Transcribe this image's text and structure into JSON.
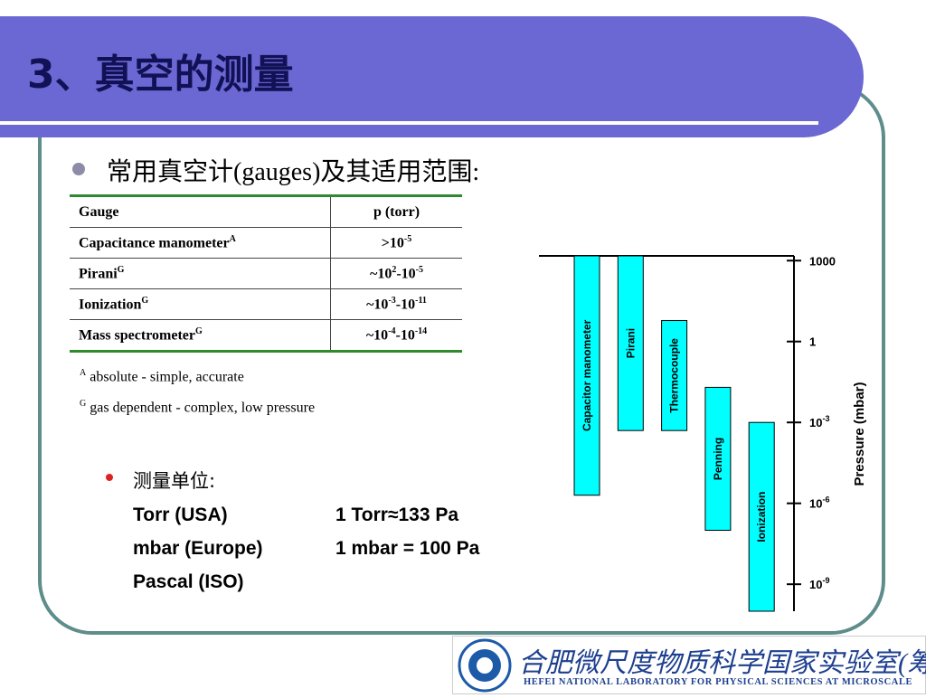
{
  "header": {
    "title": "3、真空的测量"
  },
  "bullet1": "常用真空计(gauges)及其适用范围:",
  "table": {
    "header": [
      "Gauge",
      "p (torr)"
    ],
    "rows": [
      [
        [
          "Capacitance manometer",
          "A"
        ],
        [
          ">10",
          "-5"
        ]
      ],
      [
        [
          "Pirani",
          "G"
        ],
        [
          "~10",
          "2",
          "-10",
          "-5"
        ]
      ],
      [
        [
          "Ionization",
          "G"
        ],
        [
          "~10",
          "-3",
          "-10",
          "-11"
        ]
      ],
      [
        [
          "Mass spectrometer",
          "G"
        ],
        [
          "~10",
          "-4",
          "-10",
          "-14"
        ]
      ]
    ]
  },
  "footnotes": [
    {
      "mark": "A",
      "text": "absolute - simple, accurate"
    },
    {
      "mark": "G",
      "text": "gas dependent - complex, low pressure"
    }
  ],
  "bullet2": {
    "title": "测量单位:",
    "rows": [
      [
        "Torr (USA)",
        "1 Torr≈133 Pa"
      ],
      [
        "mbar (Europe)",
        "1 mbar = 100 Pa"
      ],
      [
        "Pascal (ISO)"
      ]
    ]
  },
  "chart_data": {
    "type": "range_bar",
    "y_label": "Pressure (mbar)",
    "log_scale": true,
    "color": "#00ffff",
    "categories": [
      "Capacitor manometer",
      "Pirani",
      "Thermocouple",
      "Penning",
      "Ionization"
    ],
    "high": [
      1500,
      1500,
      6,
      0.02,
      0.001
    ],
    "low": [
      2e-06,
      0.0005,
      0.0005,
      1e-07,
      1e-10
    ],
    "ylim": [
      1e-10,
      1500
    ],
    "yticks": [
      1000,
      1,
      {
        "value": 0.001,
        "label": "10-3"
      },
      {
        "value": 1e-06,
        "label": "10-6"
      },
      {
        "value": 1e-09,
        "label": "10-9"
      }
    ]
  },
  "footer": {
    "name_cn": "合肥微尺度物质科学国家实验室(筹)",
    "name_en": "HEFEI NATIONAL LABORATORY FOR PHYSICAL SCIENCES AT MICROSCALE"
  }
}
